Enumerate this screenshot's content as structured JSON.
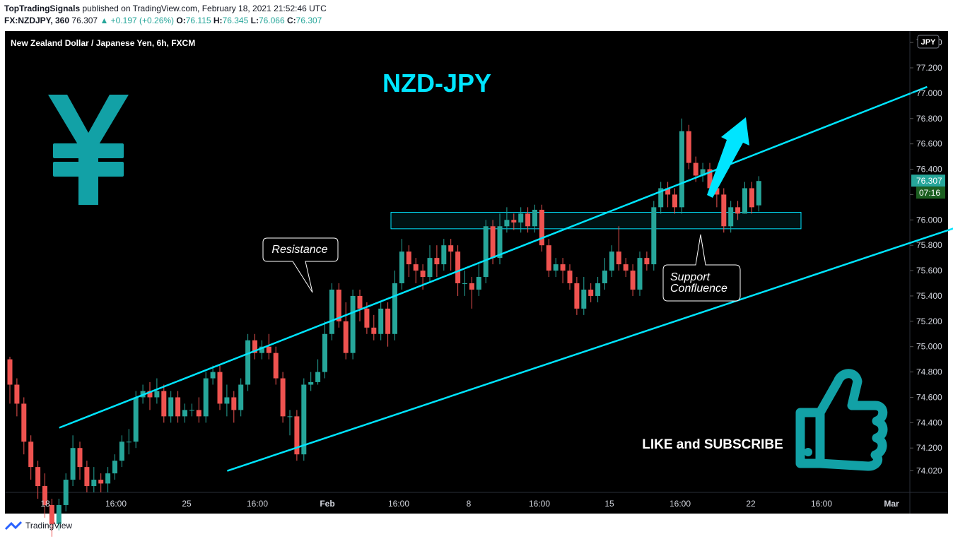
{
  "header": {
    "publisher": "TopTradingSignals",
    "published_text": "published on TradingView.com, February 18, 2021 21:52:46 UTC",
    "symbol": "FX:NZDJPY, 360",
    "last": "76.307",
    "change": "▲ +0.197 (+0.26%)",
    "o_label": "O:",
    "o_val": "76.115",
    "h_label": "H:",
    "h_val": "76.345",
    "l_label": "L:",
    "l_val": "76.066",
    "c_label": "C:",
    "c_val": "76.307"
  },
  "footer": {
    "brand": "TradingView"
  },
  "chart_data": {
    "type": "candlestick",
    "title": "NZD-JPY",
    "subtitle": "New Zealand Dollar / Japanese Yen, 6h, FXCM",
    "currency_badge": "JPY",
    "price_label": "76.307",
    "countdown_label": "07:16",
    "y_ticks": [
      "77.400",
      "77.200",
      "77.000",
      "76.800",
      "76.600",
      "76.400",
      "76.200",
      "76.000",
      "75.800",
      "75.600",
      "75.400",
      "75.200",
      "75.000",
      "74.800",
      "74.600",
      "74.400",
      "74.200",
      "74.020"
    ],
    "x_ticks": [
      "18",
      "16:00",
      "25",
      "16:00",
      "Feb",
      "16:00",
      "8",
      "16:00",
      "15",
      "16:00",
      "22",
      "16:00",
      "Mar"
    ],
    "ylim": [
      73.85,
      77.49
    ],
    "candles": [
      [
        74.9,
        74.7,
        74.92,
        74.55
      ],
      [
        74.7,
        74.55,
        74.75,
        74.45
      ],
      [
        74.55,
        74.25,
        74.6,
        74.15
      ],
      [
        74.25,
        74.05,
        74.3,
        73.95
      ],
      [
        74.05,
        73.9,
        74.1,
        73.8
      ],
      [
        73.9,
        73.75,
        74.0,
        73.65
      ],
      [
        73.75,
        73.6,
        73.8,
        73.5
      ],
      [
        73.6,
        73.75,
        73.8,
        73.55
      ],
      [
        73.75,
        73.95,
        74.0,
        73.7
      ],
      [
        73.95,
        74.2,
        74.3,
        73.9
      ],
      [
        74.2,
        74.05,
        74.25,
        73.95
      ],
      [
        74.05,
        73.9,
        74.1,
        73.85
      ],
      [
        73.9,
        73.95,
        74.05,
        73.85
      ],
      [
        73.95,
        73.92,
        74.0,
        73.85
      ],
      [
        73.92,
        74.0,
        74.05,
        73.85
      ],
      [
        74.0,
        74.1,
        74.15,
        73.95
      ],
      [
        74.1,
        74.25,
        74.3,
        74.05
      ],
      [
        74.25,
        74.25,
        74.35,
        74.15
      ],
      [
        74.25,
        74.6,
        74.65,
        74.2
      ],
      [
        74.6,
        74.65,
        74.7,
        74.55
      ],
      [
        74.65,
        74.6,
        74.72,
        74.5
      ],
      [
        74.6,
        74.65,
        74.75,
        74.55
      ],
      [
        74.65,
        74.45,
        74.7,
        74.4
      ],
      [
        74.45,
        74.6,
        74.65,
        74.4
      ],
      [
        74.6,
        74.45,
        74.65,
        74.4
      ],
      [
        74.45,
        74.5,
        74.55,
        74.4
      ],
      [
        74.5,
        74.5,
        74.55,
        74.45
      ],
      [
        74.5,
        74.45,
        74.6,
        74.4
      ],
      [
        74.45,
        74.75,
        74.8,
        74.4
      ],
      [
        74.75,
        74.8,
        74.85,
        74.7
      ],
      [
        74.8,
        74.55,
        74.85,
        74.5
      ],
      [
        74.55,
        74.6,
        74.7,
        74.45
      ],
      [
        74.6,
        74.5,
        74.65,
        74.4
      ],
      [
        74.5,
        74.7,
        74.75,
        74.45
      ],
      [
        74.7,
        75.05,
        75.1,
        74.65
      ],
      [
        75.05,
        74.95,
        75.1,
        74.9
      ],
      [
        74.95,
        75.0,
        75.05,
        74.9
      ],
      [
        75.0,
        74.95,
        75.1,
        74.9
      ],
      [
        74.95,
        74.75,
        75.0,
        74.7
      ],
      [
        74.75,
        74.45,
        74.8,
        74.4
      ],
      [
        74.45,
        74.45,
        74.5,
        74.3
      ],
      [
        74.45,
        74.15,
        74.5,
        74.1
      ],
      [
        74.15,
        74.7,
        74.75,
        74.1
      ],
      [
        74.7,
        74.72,
        74.8,
        74.65
      ],
      [
        74.72,
        74.8,
        74.9,
        74.7
      ],
      [
        74.8,
        75.1,
        75.2,
        74.75
      ],
      [
        75.1,
        75.45,
        75.5,
        75.05
      ],
      [
        75.45,
        75.2,
        75.5,
        75.15
      ],
      [
        75.2,
        74.95,
        75.35,
        74.9
      ],
      [
        74.95,
        75.4,
        75.45,
        74.9
      ],
      [
        75.4,
        75.3,
        75.45,
        75.2
      ],
      [
        75.3,
        75.15,
        75.35,
        75.1
      ],
      [
        75.15,
        75.1,
        75.25,
        75.05
      ],
      [
        75.1,
        75.3,
        75.35,
        75.05
      ],
      [
        75.3,
        75.1,
        75.35,
        75.0
      ],
      [
        75.1,
        75.5,
        75.6,
        75.05
      ],
      [
        75.5,
        75.75,
        75.85,
        75.45
      ],
      [
        75.75,
        75.65,
        75.8,
        75.55
      ],
      [
        75.65,
        75.6,
        75.7,
        75.5
      ],
      [
        75.6,
        75.55,
        75.65,
        75.45
      ],
      [
        75.55,
        75.7,
        75.8,
        75.5
      ],
      [
        75.7,
        75.65,
        75.8,
        75.55
      ],
      [
        75.65,
        75.8,
        75.85,
        75.6
      ],
      [
        75.8,
        75.75,
        75.85,
        75.6
      ],
      [
        75.75,
        75.5,
        75.8,
        75.4
      ],
      [
        75.5,
        75.5,
        75.6,
        75.4
      ],
      [
        75.5,
        75.45,
        75.55,
        75.3
      ],
      [
        75.45,
        75.55,
        75.65,
        75.4
      ],
      [
        75.55,
        75.95,
        76.0,
        75.5
      ],
      [
        75.95,
        75.7,
        76.0,
        75.65
      ],
      [
        75.7,
        75.95,
        76.05,
        75.65
      ],
      [
        75.95,
        76.0,
        76.1,
        75.9
      ],
      [
        76.0,
        75.98,
        76.05,
        75.92
      ],
      [
        75.98,
        76.05,
        76.1,
        75.9
      ],
      [
        76.05,
        75.95,
        76.1,
        75.9
      ],
      [
        75.95,
        76.08,
        76.12,
        75.9
      ],
      [
        76.08,
        75.8,
        76.12,
        75.75
      ],
      [
        75.8,
        75.6,
        75.85,
        75.55
      ],
      [
        75.6,
        75.65,
        75.7,
        75.55
      ],
      [
        75.65,
        75.6,
        75.7,
        75.5
      ],
      [
        75.6,
        75.5,
        75.65,
        75.45
      ],
      [
        75.5,
        75.3,
        75.55,
        75.25
      ],
      [
        75.3,
        75.45,
        75.55,
        75.25
      ],
      [
        75.45,
        75.4,
        75.5,
        75.35
      ],
      [
        75.4,
        75.5,
        75.55,
        75.35
      ],
      [
        75.5,
        75.6,
        75.7,
        75.45
      ],
      [
        75.6,
        75.75,
        75.8,
        75.55
      ],
      [
        75.75,
        75.65,
        75.95,
        75.6
      ],
      [
        75.65,
        75.6,
        75.7,
        75.55
      ],
      [
        75.6,
        75.45,
        75.65,
        75.4
      ],
      [
        75.45,
        75.7,
        75.75,
        75.4
      ],
      [
        75.7,
        75.65,
        75.75,
        75.6
      ],
      [
        75.65,
        76.1,
        76.15,
        75.6
      ],
      [
        76.1,
        76.25,
        76.3,
        76.05
      ],
      [
        76.25,
        76.2,
        76.3,
        76.1
      ],
      [
        76.2,
        76.1,
        76.25,
        76.05
      ],
      [
        76.1,
        76.7,
        76.8,
        76.05
      ],
      [
        76.7,
        76.45,
        76.75,
        76.4
      ],
      [
        76.45,
        76.35,
        76.5,
        76.3
      ],
      [
        76.35,
        76.4,
        76.45,
        76.3
      ],
      [
        76.4,
        76.25,
        76.45,
        76.2
      ],
      [
        76.25,
        76.2,
        76.35,
        76.1
      ],
      [
        76.2,
        75.95,
        76.25,
        75.9
      ],
      [
        75.95,
        76.1,
        76.15,
        75.9
      ],
      [
        76.1,
        76.05,
        76.15,
        76.0
      ],
      [
        76.05,
        76.25,
        76.3,
        76.05
      ],
      [
        76.25,
        76.1,
        76.3,
        76.05
      ],
      [
        76.115,
        76.307,
        76.345,
        76.066
      ]
    ],
    "channel_upper": [
      [
        "2021-01-18 12:00",
        74.36
      ],
      [
        "2021-02-18 12:00",
        77.05
      ]
    ],
    "channel_lower": [
      [
        "2021-01-24 12:00",
        74.02
      ],
      [
        "2021-02-25 12:00",
        76.38
      ]
    ],
    "support_zone": [
      75.93,
      76.06
    ],
    "annotations": [
      {
        "text": "Resistance"
      },
      {
        "text": "Support\nConfluence"
      },
      {
        "text": "LIKE and SUBSCRIBE"
      }
    ],
    "up_color": "#26a69a",
    "down_color": "#ef5350",
    "line_color": "#00e5ff",
    "background": "#000000"
  }
}
